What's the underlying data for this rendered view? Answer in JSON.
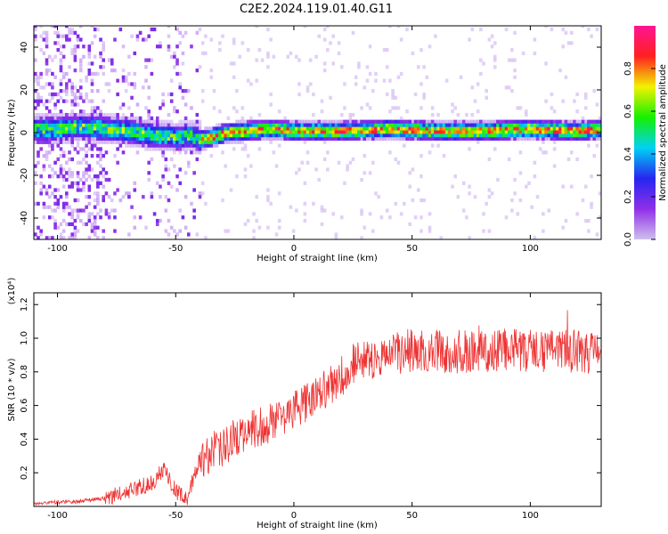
{
  "figure_title": "C2E2.2024.119.01.40.G11",
  "chart_data": [
    {
      "type": "heatmap",
      "title": "",
      "xlabel": "Height of straight line (km)",
      "ylabel": "Frequency (Hz)",
      "xlim": [
        -110,
        130
      ],
      "ylim": [
        -50,
        50
      ],
      "xticks": [
        -100,
        -50,
        0,
        50,
        100
      ],
      "yticks": [
        -40,
        -20,
        0,
        20,
        40
      ],
      "colorbar": {
        "label": "Normalized spectral amplitude",
        "range": [
          0,
          1
        ],
        "ticks": [
          "0.0",
          "0.2",
          "0.4",
          "0.6",
          "0.8"
        ],
        "colors": [
          "#cfc0ee",
          "#8f2fe8",
          "#2626f0",
          "#00d2f5",
          "#16f000",
          "#f2f200",
          "#ff2020",
          "#ff1493"
        ]
      },
      "ridge": [
        {
          "x": -110,
          "y": 1
        },
        {
          "x": -100,
          "y": 1
        },
        {
          "x": -90,
          "y": 2
        },
        {
          "x": -80,
          "y": 1
        },
        {
          "x": -70,
          "y": 0
        },
        {
          "x": -60,
          "y": -2
        },
        {
          "x": -50,
          "y": -3
        },
        {
          "x": -45,
          "y": -2
        },
        {
          "x": -40,
          "y": -4
        },
        {
          "x": -35,
          "y": -3
        },
        {
          "x": -30,
          "y": -1
        },
        {
          "x": -20,
          "y": 0
        },
        {
          "x": -10,
          "y": 1
        },
        {
          "x": 0,
          "y": 0
        },
        {
          "x": 20,
          "y": 0
        },
        {
          "x": 40,
          "y": 1
        },
        {
          "x": 60,
          "y": 0
        },
        {
          "x": 80,
          "y": 0
        },
        {
          "x": 100,
          "y": 1
        },
        {
          "x": 120,
          "y": 0
        },
        {
          "x": 130,
          "y": 1
        }
      ]
    },
    {
      "type": "line",
      "title": "",
      "xlabel": "Height of straight line (km)",
      "ylabel": "SNR (10 * v/v)",
      "y_multiplier_label": "(x10⁴)",
      "xlim": [
        -110,
        130
      ],
      "ylim": [
        0,
        1.27
      ],
      "xticks": [
        -100,
        -50,
        0,
        50,
        100
      ],
      "yticks": [
        "0.2",
        "0.4",
        "0.6",
        "0.8",
        "1.0",
        "1.2"
      ],
      "series_color": "#ee3333",
      "trend": [
        {
          "x": -110,
          "y": 0.02
        },
        {
          "x": -90,
          "y": 0.03
        },
        {
          "x": -80,
          "y": 0.05
        },
        {
          "x": -70,
          "y": 0.09
        },
        {
          "x": -60,
          "y": 0.14
        },
        {
          "x": -55,
          "y": 0.22
        },
        {
          "x": -50,
          "y": 0.09
        },
        {
          "x": -45,
          "y": 0.05
        },
        {
          "x": -40,
          "y": 0.28
        },
        {
          "x": -30,
          "y": 0.36
        },
        {
          "x": -20,
          "y": 0.44
        },
        {
          "x": -10,
          "y": 0.5
        },
        {
          "x": 0,
          "y": 0.58
        },
        {
          "x": 10,
          "y": 0.66
        },
        {
          "x": 20,
          "y": 0.78
        },
        {
          "x": 30,
          "y": 0.88
        },
        {
          "x": 50,
          "y": 0.93
        },
        {
          "x": 70,
          "y": 0.92
        },
        {
          "x": 90,
          "y": 0.93
        },
        {
          "x": 110,
          "y": 0.92
        },
        {
          "x": 130,
          "y": 0.92
        }
      ]
    }
  ]
}
